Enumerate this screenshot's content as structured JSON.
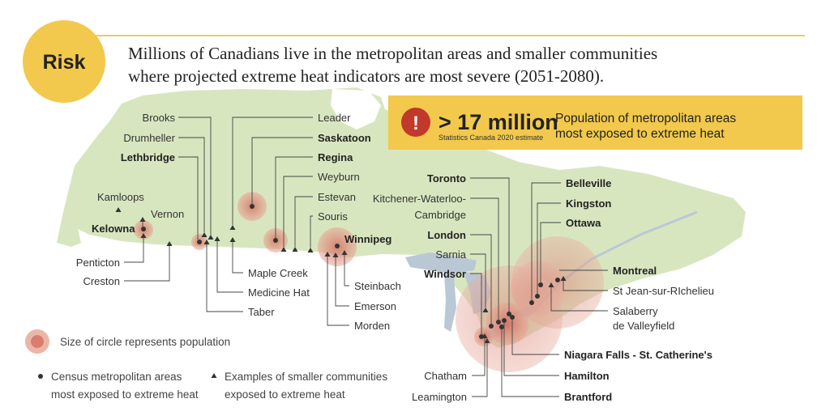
{
  "badge": {
    "label": "Risk"
  },
  "headline": {
    "line1": "Millions of Canadians live in the metropolitan areas and smaller communities",
    "line2": "where projected extreme heat indicators are most severe (2051-2080)."
  },
  "callout": {
    "icon": "exclamation-icon",
    "number": "> 17 million",
    "source": "Statistics Canada 2020 estimate",
    "desc_line1": "Population of metropolitan areas",
    "desc_line2": "most exposed to extreme heat"
  },
  "colors": {
    "land": "#d7e6bf",
    "water": "#b8c7d3",
    "accent_yellow": "#f2c94c",
    "circle": "#d98576",
    "icon_red": "#c0392b",
    "rule_gold": "#e2b93b"
  },
  "places": [
    {
      "name": "Brooks",
      "type": "community",
      "bold": false
    },
    {
      "name": "Drumheller",
      "type": "community",
      "bold": false
    },
    {
      "name": "Lethbridge",
      "type": "metro",
      "bold": true
    },
    {
      "name": "Kamloops",
      "type": "community",
      "bold": false
    },
    {
      "name": "Vernon",
      "type": "community",
      "bold": false
    },
    {
      "name": "Kelowna",
      "type": "metro",
      "bold": true
    },
    {
      "name": "Penticton",
      "type": "community",
      "bold": false
    },
    {
      "name": "Creston",
      "type": "community",
      "bold": false
    },
    {
      "name": "Leader",
      "type": "community",
      "bold": false
    },
    {
      "name": "Saskatoon",
      "type": "metro",
      "bold": true
    },
    {
      "name": "Regina",
      "type": "metro",
      "bold": true
    },
    {
      "name": "Weyburn",
      "type": "community",
      "bold": false
    },
    {
      "name": "Estevan",
      "type": "community",
      "bold": false
    },
    {
      "name": "Souris",
      "type": "community",
      "bold": false
    },
    {
      "name": "Winnipeg",
      "type": "metro",
      "bold": true
    },
    {
      "name": "Maple Creek",
      "type": "community",
      "bold": false
    },
    {
      "name": "Medicine Hat",
      "type": "community",
      "bold": false
    },
    {
      "name": "Taber",
      "type": "community",
      "bold": false
    },
    {
      "name": "Steinbach",
      "type": "community",
      "bold": false
    },
    {
      "name": "Emerson",
      "type": "community",
      "bold": false
    },
    {
      "name": "Morden",
      "type": "community",
      "bold": false
    },
    {
      "name": "Toronto",
      "type": "metro",
      "bold": true
    },
    {
      "name": "Kitchener-Waterloo-",
      "type": "metro",
      "bold": false
    },
    {
      "name": "Cambridge",
      "type": "metro",
      "bold": false
    },
    {
      "name": "London",
      "type": "metro",
      "bold": true
    },
    {
      "name": "Sarnia",
      "type": "community",
      "bold": false
    },
    {
      "name": "Windsor",
      "type": "metro",
      "bold": true
    },
    {
      "name": "Chatham",
      "type": "community",
      "bold": false
    },
    {
      "name": "Leamington",
      "type": "community",
      "bold": false
    },
    {
      "name": "Belleville",
      "type": "metro",
      "bold": true
    },
    {
      "name": "Kingston",
      "type": "metro",
      "bold": true
    },
    {
      "name": "Ottawa",
      "type": "metro",
      "bold": true
    },
    {
      "name": "Montreal",
      "type": "metro",
      "bold": true
    },
    {
      "name": "St Jean-sur-RIchelieu",
      "type": "community",
      "bold": false
    },
    {
      "name": "Salaberry",
      "type": "community",
      "bold": false
    },
    {
      "name": "de Valleyfield",
      "type": "community",
      "bold": false
    },
    {
      "name": "Niagara Falls - St. Catherine's",
      "type": "metro",
      "bold": true
    },
    {
      "name": "Hamilton",
      "type": "metro",
      "bold": true
    },
    {
      "name": "Brantford",
      "type": "metro",
      "bold": true
    }
  ],
  "legend": {
    "size_text": "Size of circle represents population",
    "metro_line1": "Census metropolitan areas",
    "metro_line2": "most exposed to extreme heat",
    "community_line1": "Examples of smaller communities",
    "community_line2": "exposed to extreme heat"
  }
}
